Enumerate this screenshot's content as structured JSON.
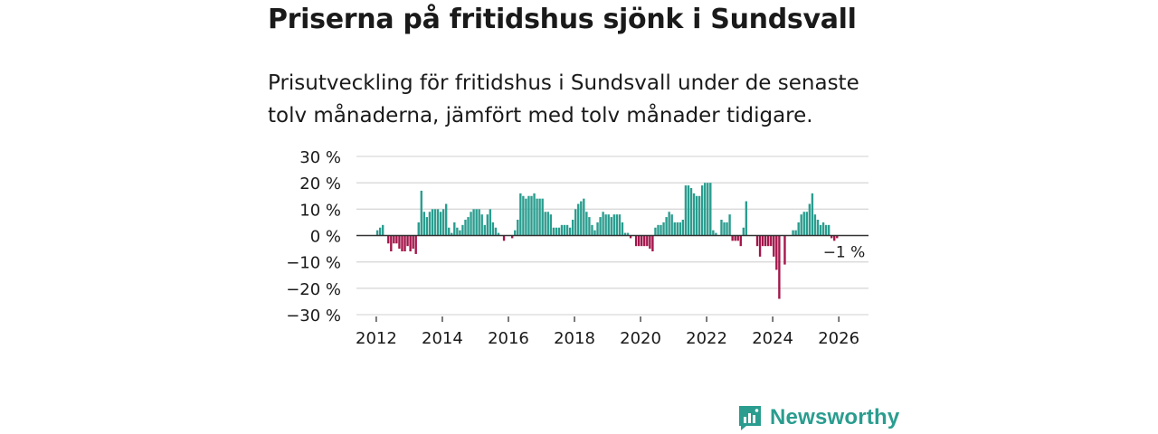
{
  "header": {
    "title": "Priserna på fritidshus sjönk i Sundsvall",
    "subtitle": "Prisutveckling för fritidshus i Sundsvall under de senaste tolv månaderna, jämfört med tolv månader tidigare."
  },
  "brand": {
    "name": "Newsworthy",
    "icon": "newsworthy-logo-icon"
  },
  "colors": {
    "positive": "#2a9d8f",
    "negative": "#a3154a",
    "grid": "#d9d9d9",
    "zero": "#333333",
    "text": "#1a1a1a"
  },
  "chart_data": {
    "type": "bar",
    "title": "Priserna på fritidshus sjönk i Sundsvall",
    "xlabel": "",
    "ylabel": "",
    "unit": "%",
    "ylim": [
      -30,
      30
    ],
    "yticks": [
      30,
      20,
      10,
      0,
      -10,
      -20,
      -30
    ],
    "ytick_labels": [
      "30 %",
      "20 %",
      "10 %",
      "0 %",
      "−10 %",
      "−20 %",
      "−30 %"
    ],
    "xticks": [
      2012,
      2014,
      2016,
      2018,
      2020,
      2022,
      2024,
      2026
    ],
    "xtick_labels": [
      "2012",
      "2014",
      "2016",
      "2018",
      "2020",
      "2022",
      "2024",
      "2026"
    ],
    "grid": true,
    "series": [
      {
        "name": "Prisutveckling",
        "start": {
          "year": 2012,
          "month": 1
        },
        "values": [
          2,
          3,
          4,
          0,
          -3,
          -6,
          -3,
          -3,
          -5,
          -6,
          -6,
          -4,
          -6,
          -5,
          -7,
          5,
          17,
          9,
          7,
          9,
          10,
          10,
          10,
          9,
          10,
          12,
          3,
          1,
          5,
          3,
          2,
          4,
          6,
          7,
          9,
          10,
          10,
          10,
          8,
          4,
          8,
          10,
          5,
          3,
          1,
          0,
          -2,
          0,
          0,
          -1,
          2,
          6,
          16,
          15,
          14,
          15,
          15,
          16,
          14,
          14,
          14,
          9,
          9,
          8,
          3,
          3,
          3,
          4,
          4,
          4,
          3,
          6,
          10,
          12,
          13,
          14,
          9,
          7,
          4,
          2,
          5,
          7,
          9,
          8,
          8,
          7,
          8,
          8,
          8,
          5,
          1,
          1,
          -1,
          0,
          -4,
          -4,
          -4,
          -4,
          -4,
          -5,
          -6,
          3,
          4,
          4,
          5,
          7,
          9,
          8,
          5,
          5,
          5,
          6,
          19,
          19,
          18,
          16,
          15,
          15,
          19,
          20,
          20,
          20,
          2,
          1,
          0,
          6,
          5,
          5,
          8,
          -2,
          -2,
          -2,
          -4,
          3,
          13,
          0,
          0,
          0,
          -4,
          -8,
          -4,
          -4,
          -4,
          -4,
          -8,
          -13,
          -24,
          0,
          -11,
          0,
          0,
          2,
          2,
          5,
          8,
          9,
          9,
          12,
          16,
          8,
          6,
          4,
          5,
          4,
          4,
          -1,
          -2,
          -1
        ]
      }
    ],
    "annotations": [
      {
        "text": "−1 %",
        "at": "last-value"
      }
    ]
  }
}
